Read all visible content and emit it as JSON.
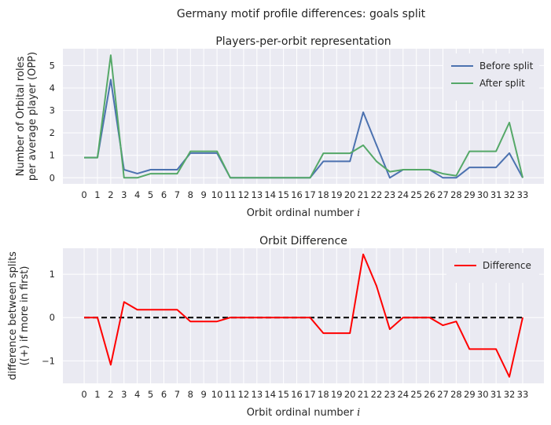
{
  "figure": {
    "suptitle": "Germany motif profile differences: goals split"
  },
  "chart_data": [
    {
      "type": "line",
      "title": "Players-per-orbit representation",
      "xlabel": "Orbit ordinal number",
      "xlabel_var": "i",
      "ylabel_lines": [
        "Number of Orbital roles",
        "per average player (OPP)"
      ],
      "x": [
        0,
        1,
        2,
        3,
        4,
        5,
        6,
        7,
        8,
        9,
        10,
        11,
        12,
        13,
        14,
        15,
        16,
        17,
        18,
        19,
        20,
        21,
        22,
        23,
        24,
        25,
        26,
        27,
        28,
        29,
        30,
        31,
        32,
        33
      ],
      "xlim": [
        -1.6,
        34.6
      ],
      "ylim": [
        -0.27,
        5.75
      ],
      "yticks": [
        0,
        1,
        2,
        3,
        4,
        5
      ],
      "grid": true,
      "legend": "top-right",
      "series": [
        {
          "name": "Before split",
          "color": "#4c72b0",
          "values": [
            0.9,
            0.9,
            4.37,
            0.36,
            0.19,
            0.36,
            0.36,
            0.36,
            1.1,
            1.1,
            1.1,
            0,
            0,
            0,
            0,
            0,
            0,
            0,
            0.73,
            0.73,
            0.73,
            2.92,
            1.46,
            0,
            0.36,
            0.36,
            0.36,
            0,
            0,
            0.46,
            0.46,
            0.46,
            1.1,
            0
          ]
        },
        {
          "name": "After split",
          "color": "#55a868",
          "values": [
            0.9,
            0.9,
            5.46,
            0,
            0,
            0.18,
            0.18,
            0.18,
            1.18,
            1.18,
            1.18,
            0,
            0,
            0,
            0,
            0,
            0,
            0,
            1.09,
            1.09,
            1.09,
            1.45,
            0.73,
            0.27,
            0.36,
            0.36,
            0.36,
            0.18,
            0.09,
            1.18,
            1.18,
            1.18,
            2.46,
            0
          ]
        }
      ]
    },
    {
      "type": "line",
      "title": "Orbit Difference",
      "xlabel": "Orbit ordinal number",
      "xlabel_var": "i",
      "ylabel_lines": [
        "difference between splits",
        "((+) if more in first)"
      ],
      "x": [
        0,
        1,
        2,
        3,
        4,
        5,
        6,
        7,
        8,
        9,
        10,
        11,
        12,
        13,
        14,
        15,
        16,
        17,
        18,
        19,
        20,
        21,
        22,
        23,
        24,
        25,
        26,
        27,
        28,
        29,
        30,
        31,
        32,
        33
      ],
      "xlim": [
        -1.6,
        34.6
      ],
      "ylim": [
        -1.52,
        1.6
      ],
      "yticks": [
        -1,
        0,
        1
      ],
      "grid": true,
      "legend": "top-right",
      "baseline": {
        "y": 0,
        "style": "dashed",
        "color": "#000000"
      },
      "series": [
        {
          "name": "Difference",
          "color": "#ff0000",
          "values": [
            0,
            0,
            -1.09,
            0.36,
            0.18,
            0.18,
            0.18,
            0.18,
            -0.09,
            -0.09,
            -0.09,
            0,
            0,
            0,
            0,
            0,
            0,
            0,
            -0.36,
            -0.36,
            -0.36,
            1.46,
            0.73,
            -0.27,
            0,
            0,
            0,
            -0.18,
            -0.09,
            -0.73,
            -0.73,
            -0.73,
            -1.37,
            0
          ]
        }
      ]
    }
  ]
}
